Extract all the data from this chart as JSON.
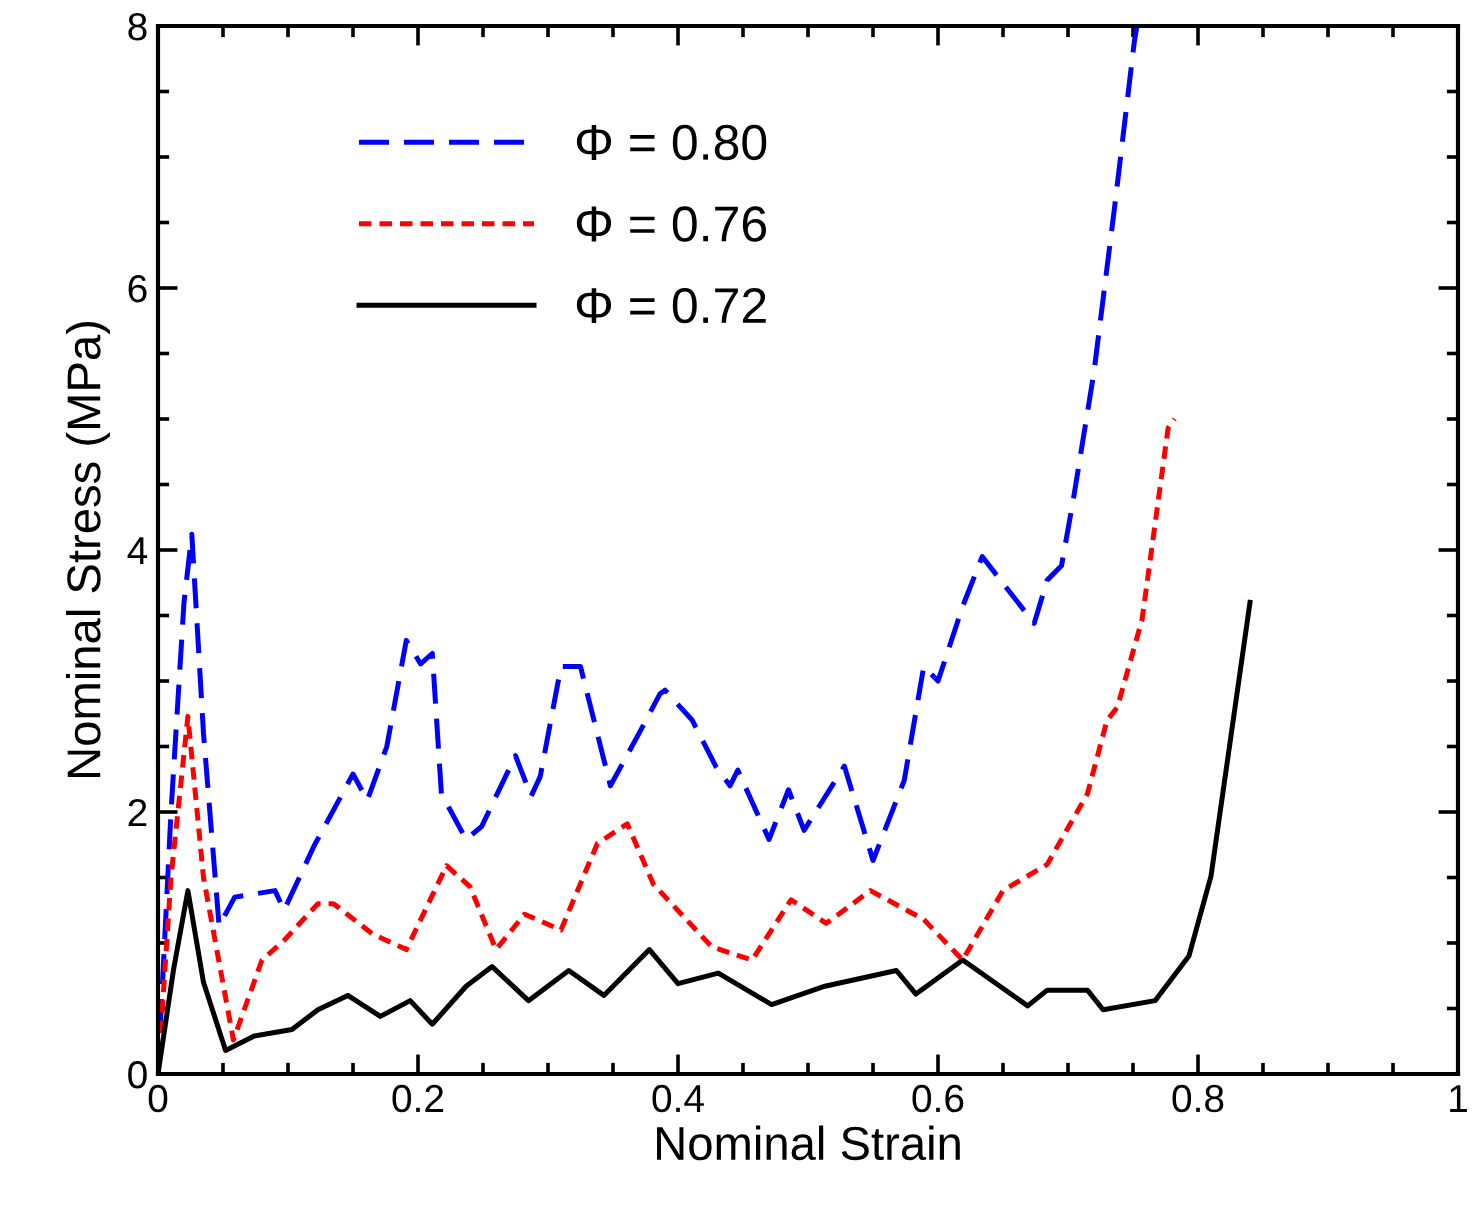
{
  "chart_data": {
    "type": "line",
    "xlabel": "Nominal Strain",
    "ylabel": "Nominal Stress (MPa)",
    "xlim": [
      0,
      1
    ],
    "xticks": [
      0,
      0.2,
      0.4,
      0.6,
      0.8,
      1
    ],
    "ylim": [
      0,
      8
    ],
    "yticks": [
      0,
      2,
      4,
      6,
      8
    ],
    "grid": false,
    "legend": "top left",
    "marker": "none",
    "series": [
      {
        "name": "Φ = 0.80",
        "color": "#0000ff",
        "line_style": "dashed",
        "x": [
          0,
          0.01,
          0.02,
          0.026,
          0.035,
          0.047,
          0.059,
          0.09,
          0.097,
          0.12,
          0.15,
          0.161,
          0.176,
          0.191,
          0.202,
          0.211,
          0.218,
          0.237,
          0.249,
          0.275,
          0.287,
          0.294,
          0.31,
          0.325,
          0.348,
          0.37,
          0.386,
          0.39,
          0.411,
          0.429,
          0.44,
          0.446,
          0.47,
          0.485,
          0.497,
          0.528,
          0.55,
          0.574,
          0.589,
          0.6,
          0.619,
          0.634,
          0.674,
          0.684,
          0.695,
          0.704,
          0.72,
          0.736,
          0.751,
          0.753
        ],
        "values": [
          0,
          2.0,
          3.6,
          4.12,
          2.6,
          1.13,
          1.35,
          1.4,
          1.25,
          1.74,
          2.29,
          2.09,
          2.5,
          3.31,
          3.13,
          3.21,
          2.14,
          1.79,
          1.89,
          2.43,
          2.12,
          2.27,
          3.11,
          3.11,
          2.2,
          2.6,
          2.9,
          2.93,
          2.7,
          2.35,
          2.2,
          2.32,
          1.79,
          2.17,
          1.86,
          2.35,
          1.63,
          2.24,
          3.11,
          3.0,
          3.57,
          3.95,
          3.44,
          3.77,
          3.88,
          4.38,
          5.36,
          6.63,
          7.88,
          8.0
        ]
      },
      {
        "name": "Φ = 0.76",
        "color": "#ff0000",
        "line_style": "dotted",
        "x": [
          0,
          0.01,
          0.023,
          0.035,
          0.058,
          0.08,
          0.097,
          0.123,
          0.135,
          0.165,
          0.191,
          0.222,
          0.24,
          0.26,
          0.282,
          0.31,
          0.338,
          0.361,
          0.381,
          0.426,
          0.457,
          0.487,
          0.514,
          0.548,
          0.589,
          0.619,
          0.65,
          0.684,
          0.715,
          0.73,
          0.738,
          0.757,
          0.777,
          0.782
        ],
        "values": [
          0,
          1.5,
          2.73,
          1.5,
          0.26,
          0.87,
          1.02,
          1.3,
          1.3,
          1.07,
          0.95,
          1.59,
          1.43,
          0.95,
          1.22,
          1.1,
          1.76,
          1.91,
          1.45,
          0.97,
          0.87,
          1.33,
          1.15,
          1.4,
          1.18,
          0.87,
          1.4,
          1.6,
          2.14,
          2.7,
          2.8,
          3.47,
          4.93,
          5.0
        ]
      },
      {
        "name": "Φ = 0.72",
        "color": "#000000",
        "line_style": "solid",
        "x": [
          0,
          0.012,
          0.023,
          0.035,
          0.052,
          0.074,
          0.103,
          0.123,
          0.146,
          0.171,
          0.194,
          0.211,
          0.237,
          0.257,
          0.285,
          0.316,
          0.343,
          0.378,
          0.4,
          0.431,
          0.472,
          0.513,
          0.568,
          0.583,
          0.619,
          0.669,
          0.684,
          0.715,
          0.727,
          0.767,
          0.793,
          0.81,
          0.84
        ],
        "values": [
          0,
          0.8,
          1.4,
          0.7,
          0.18,
          0.29,
          0.34,
          0.49,
          0.6,
          0.44,
          0.56,
          0.38,
          0.67,
          0.82,
          0.56,
          0.79,
          0.6,
          0.95,
          0.69,
          0.77,
          0.53,
          0.67,
          0.79,
          0.61,
          0.87,
          0.52,
          0.64,
          0.64,
          0.49,
          0.56,
          0.9,
          1.51,
          3.6
        ]
      }
    ]
  }
}
